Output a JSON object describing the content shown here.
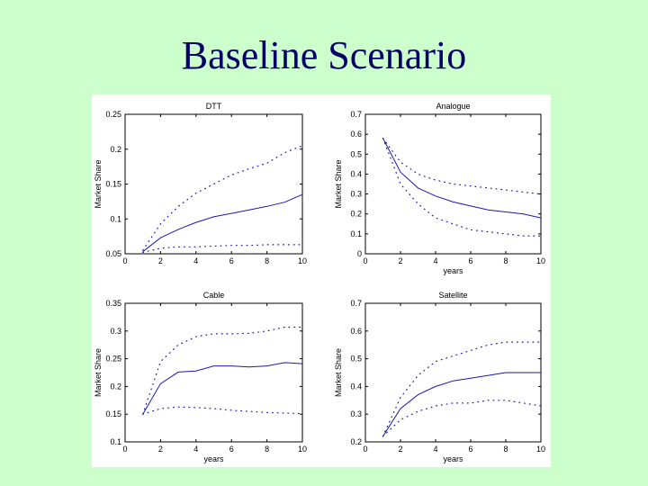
{
  "slide": {
    "title": "Baseline Scenario"
  },
  "chart_data": [
    {
      "type": "line",
      "title": "DTT",
      "xlabel": "",
      "ylabel": "Market Share",
      "xlim": [
        0,
        10
      ],
      "ylim": [
        0.05,
        0.25
      ],
      "xticks": [
        0,
        2,
        4,
        6,
        8,
        10
      ],
      "yticks": [
        0.05,
        0.1,
        0.15,
        0.2,
        0.25
      ],
      "xtick_labels": [
        "0",
        "2",
        "4",
        "6",
        "8",
        "10"
      ],
      "ytick_labels": [
        "0.05",
        "0.1",
        "0.15",
        "0.2",
        "0.25"
      ],
      "series": [
        {
          "style": "solid",
          "color": "#1a1aaa",
          "x": [
            1,
            2,
            3,
            4,
            5,
            6,
            7,
            8,
            9,
            10
          ],
          "values": [
            0.053,
            0.073,
            0.085,
            0.095,
            0.103,
            0.108,
            0.113,
            0.118,
            0.124,
            0.135
          ]
        },
        {
          "style": "dotted",
          "color": "#1a1aaa",
          "x": [
            1,
            2,
            3,
            4,
            5,
            6,
            7,
            8,
            9,
            10
          ],
          "values": [
            0.055,
            0.093,
            0.118,
            0.137,
            0.15,
            0.163,
            0.172,
            0.18,
            0.195,
            0.205
          ]
        },
        {
          "style": "dotted",
          "color": "#1a1aaa",
          "x": [
            1,
            2,
            3,
            4,
            5,
            6,
            7,
            8,
            9,
            10
          ],
          "values": [
            0.052,
            0.058,
            0.06,
            0.06,
            0.061,
            0.062,
            0.062,
            0.063,
            0.063,
            0.063
          ]
        }
      ]
    },
    {
      "type": "line",
      "title": "Analogue",
      "xlabel": "years",
      "ylabel": "Market Share",
      "xlim": [
        0,
        10
      ],
      "ylim": [
        0,
        0.7
      ],
      "xticks": [
        0,
        2,
        4,
        6,
        8,
        10
      ],
      "yticks": [
        0,
        0.1,
        0.2,
        0.3,
        0.4,
        0.5,
        0.6,
        0.7
      ],
      "xtick_labels": [
        "0",
        "2",
        "4",
        "6",
        "8",
        "10"
      ],
      "ytick_labels": [
        "0",
        "0.1",
        "0.2",
        "0.3",
        "0.4",
        "0.5",
        "0.6",
        "0.7"
      ],
      "series": [
        {
          "style": "solid",
          "color": "#1a1aaa",
          "x": [
            1,
            2,
            3,
            4,
            5,
            6,
            7,
            8,
            9,
            10
          ],
          "values": [
            0.58,
            0.41,
            0.33,
            0.29,
            0.26,
            0.24,
            0.22,
            0.21,
            0.2,
            0.18
          ]
        },
        {
          "style": "dotted",
          "color": "#1a1aaa",
          "x": [
            1,
            2,
            3,
            4,
            5,
            6,
            7,
            8,
            9,
            10
          ],
          "values": [
            0.58,
            0.46,
            0.4,
            0.37,
            0.35,
            0.34,
            0.33,
            0.32,
            0.31,
            0.3
          ]
        },
        {
          "style": "dotted",
          "color": "#1a1aaa",
          "x": [
            1,
            2,
            3,
            4,
            5,
            6,
            7,
            8,
            9,
            10
          ],
          "values": [
            0.58,
            0.35,
            0.25,
            0.18,
            0.15,
            0.12,
            0.11,
            0.1,
            0.09,
            0.09
          ]
        }
      ]
    },
    {
      "type": "line",
      "title": "Cable",
      "xlabel": "years",
      "ylabel": "Market Share",
      "xlim": [
        0,
        10
      ],
      "ylim": [
        0.1,
        0.35
      ],
      "xticks": [
        0,
        2,
        4,
        6,
        8,
        10
      ],
      "yticks": [
        0.1,
        0.15,
        0.2,
        0.25,
        0.3,
        0.35
      ],
      "xtick_labels": [
        "0",
        "2",
        "4",
        "6",
        "8",
        "10"
      ],
      "ytick_labels": [
        "0.1",
        "0.15",
        "0.2",
        "0.25",
        "0.3",
        "0.35"
      ],
      "series": [
        {
          "style": "solid",
          "color": "#1a1aaa",
          "x": [
            1,
            2,
            3,
            4,
            5,
            6,
            7,
            8,
            9,
            10
          ],
          "values": [
            0.15,
            0.205,
            0.226,
            0.228,
            0.237,
            0.237,
            0.235,
            0.237,
            0.243,
            0.241
          ]
        },
        {
          "style": "dotted",
          "color": "#1a1aaa",
          "x": [
            1,
            2,
            3,
            4,
            5,
            6,
            7,
            8,
            9,
            10
          ],
          "values": [
            0.15,
            0.245,
            0.275,
            0.29,
            0.295,
            0.295,
            0.296,
            0.3,
            0.307,
            0.307
          ]
        },
        {
          "style": "dotted",
          "color": "#1a1aaa",
          "x": [
            1,
            2,
            3,
            4,
            5,
            6,
            7,
            8,
            9,
            10
          ],
          "values": [
            0.15,
            0.16,
            0.163,
            0.162,
            0.16,
            0.157,
            0.155,
            0.153,
            0.152,
            0.151
          ]
        }
      ]
    },
    {
      "type": "line",
      "title": "Satellite",
      "xlabel": "years",
      "ylabel": "Market Share",
      "xlim": [
        0,
        10
      ],
      "ylim": [
        0.2,
        0.7
      ],
      "xticks": [
        0,
        2,
        4,
        6,
        8,
        10
      ],
      "yticks": [
        0.2,
        0.3,
        0.4,
        0.5,
        0.6,
        0.7
      ],
      "xtick_labels": [
        "0",
        "2",
        "4",
        "6",
        "8",
        "10"
      ],
      "ytick_labels": [
        "0.2",
        "0.3",
        "0.4",
        "0.5",
        "0.6",
        "0.7"
      ],
      "series": [
        {
          "style": "solid",
          "color": "#1a1aaa",
          "x": [
            1,
            2,
            3,
            4,
            5,
            6,
            7,
            8,
            9,
            10
          ],
          "values": [
            0.22,
            0.32,
            0.37,
            0.4,
            0.42,
            0.43,
            0.44,
            0.45,
            0.45,
            0.45
          ]
        },
        {
          "style": "dotted",
          "color": "#1a1aaa",
          "x": [
            1,
            2,
            3,
            4,
            5,
            6,
            7,
            8,
            9,
            10
          ],
          "values": [
            0.22,
            0.36,
            0.44,
            0.49,
            0.51,
            0.53,
            0.55,
            0.56,
            0.56,
            0.56
          ]
        },
        {
          "style": "dotted",
          "color": "#1a1aaa",
          "x": [
            1,
            2,
            3,
            4,
            5,
            6,
            7,
            8,
            9,
            10
          ],
          "values": [
            0.22,
            0.28,
            0.31,
            0.33,
            0.34,
            0.34,
            0.35,
            0.35,
            0.34,
            0.33
          ]
        }
      ]
    }
  ]
}
